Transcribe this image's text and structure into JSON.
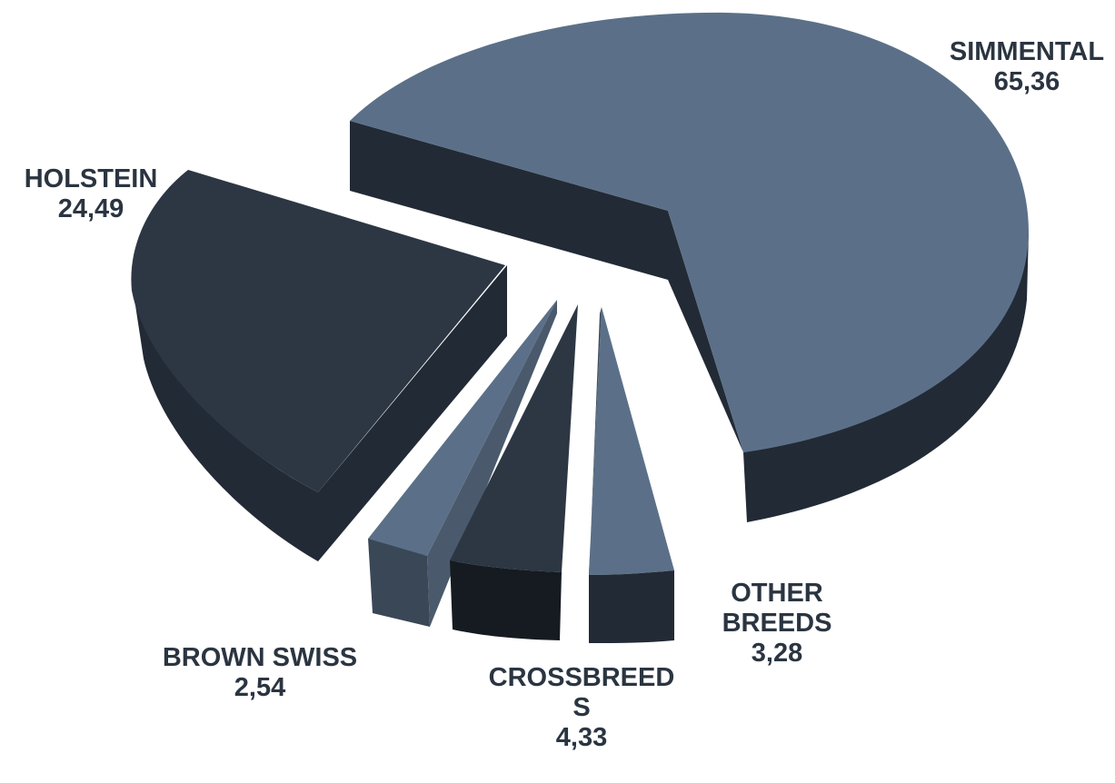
{
  "chart_data": {
    "type": "pie",
    "style": "3d-exploded",
    "title": "",
    "slices": [
      {
        "name": "SIMMENTAL",
        "value": 65.36,
        "display_value": "65,36",
        "color": "#5b7088",
        "side_color": "#222a35"
      },
      {
        "name": "HOLSTEIN",
        "value": 24.49,
        "display_value": "24,49",
        "color": "#2c3743",
        "side_color": "#222a35"
      },
      {
        "name": "BROWN SWISS",
        "value": 2.54,
        "display_value": "2,54",
        "color": "#5b7088",
        "side_color": "#3a4756"
      },
      {
        "name": "CROSSBREEDS",
        "display_name": "CROSSBREED\nS",
        "value": 4.33,
        "display_value": "4,33",
        "color": "#2c3743",
        "side_color": "#151b21"
      },
      {
        "name": "OTHER BREEDS",
        "display_name": "OTHER\nBREEDS",
        "value": 3.28,
        "display_value": "3,28",
        "color": "#5b7088",
        "side_color": "#222a35"
      }
    ]
  }
}
